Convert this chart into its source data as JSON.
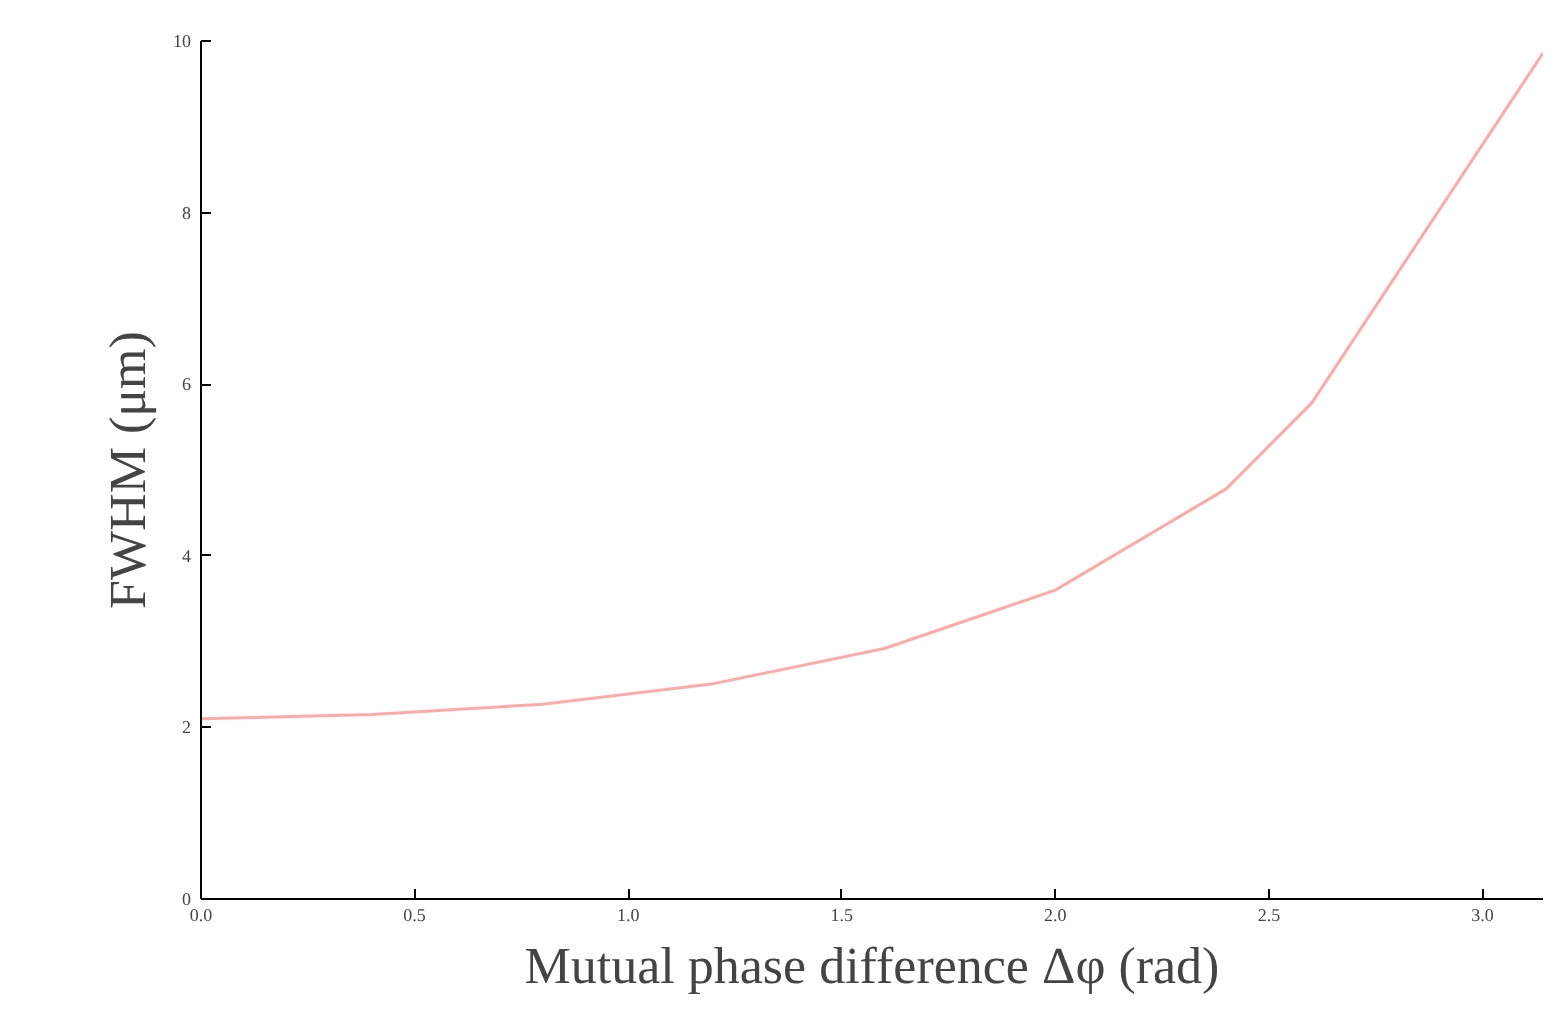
{
  "chart_data": {
    "type": "line",
    "xlabel": "Mutual phase difference Δφ (rad)",
    "ylabel": "FWHM (μm)",
    "x": [
      0,
      0.4,
      0.8,
      1.2,
      1.6,
      2.0,
      2.4,
      2.6,
      3.1416
    ],
    "series": [
      {
        "color": "#ffaaaa",
        "values": [
          2.1,
          2.15,
          2.27,
          2.51,
          2.92,
          3.6,
          4.78,
          5.78,
          9.86
        ]
      }
    ],
    "xlim": [
      0,
      3.1416
    ],
    "ylim": [
      0,
      10
    ],
    "xticks": [
      {
        "value": 0,
        "label": "0.0"
      },
      {
        "value": 0.5,
        "label": "0.5"
      },
      {
        "value": 1,
        "label": "1.0"
      },
      {
        "value": 1.5,
        "label": "1.5"
      },
      {
        "value": 2,
        "label": "2.0"
      },
      {
        "value": 2.5,
        "label": "2.5"
      },
      {
        "value": 3,
        "label": "3.0"
      }
    ],
    "yticks": [
      0,
      2,
      4,
      6,
      8,
      10
    ],
    "grid": false,
    "marker": "none",
    "line_style": "solid"
  }
}
